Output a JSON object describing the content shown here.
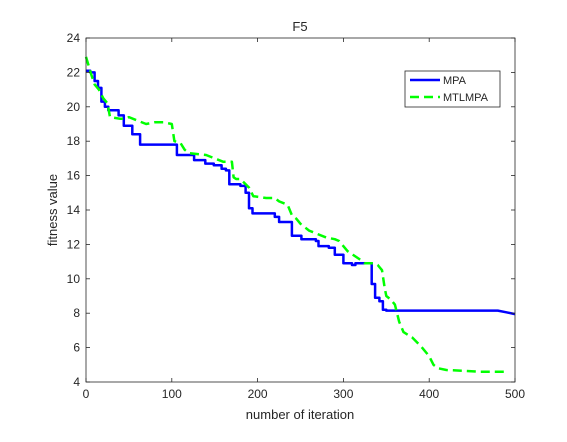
{
  "chart_data": {
    "type": "line",
    "title": "F5",
    "xlabel": "number of iteration",
    "ylabel": "fitness value",
    "xlim": [
      0,
      500
    ],
    "ylim": [
      4,
      24
    ],
    "xticks": [
      0,
      100,
      200,
      300,
      400,
      500
    ],
    "yticks": [
      4,
      6,
      8,
      10,
      12,
      14,
      16,
      18,
      20,
      22,
      24
    ],
    "grid": false,
    "legend_position": "top-right",
    "series": [
      {
        "name": "MPA",
        "color": "#0000ff",
        "style": "solid",
        "x": [
          0,
          5,
          5,
          10,
          10,
          14,
          14,
          18,
          18,
          22,
          22,
          26,
          26,
          38,
          38,
          44,
          44,
          54,
          54,
          63,
          63,
          106,
          106,
          126,
          126,
          139,
          139,
          149,
          149,
          158,
          158,
          163,
          163,
          167,
          167,
          180,
          180,
          186,
          186,
          190,
          190,
          194,
          194,
          220,
          220,
          225,
          225,
          240,
          240,
          251,
          251,
          268,
          268,
          271,
          271,
          283,
          283,
          290,
          290,
          300,
          300,
          310,
          310,
          314,
          314,
          333,
          333,
          337,
          337,
          342,
          342,
          346,
          346,
          350,
          350,
          360,
          480,
          490,
          500
        ],
        "y": [
          22.1,
          22.1,
          22.0,
          22.0,
          21.5,
          21.5,
          21.1,
          21.1,
          20.3,
          20.3,
          20.0,
          20.0,
          19.8,
          19.8,
          19.5,
          19.5,
          18.9,
          18.9,
          18.4,
          18.4,
          17.8,
          17.8,
          17.2,
          17.2,
          16.9,
          16.9,
          16.7,
          16.7,
          16.6,
          16.6,
          16.4,
          16.4,
          16.3,
          16.3,
          15.5,
          15.5,
          15.4,
          15.4,
          15.0,
          15.0,
          14.1,
          14.1,
          13.8,
          13.8,
          13.6,
          13.6,
          13.3,
          13.3,
          12.5,
          12.5,
          12.3,
          12.3,
          12.2,
          12.2,
          11.9,
          11.9,
          11.8,
          11.8,
          11.4,
          11.4,
          10.9,
          10.9,
          10.8,
          10.8,
          10.9,
          10.9,
          9.7,
          9.7,
          8.9,
          8.9,
          8.7,
          8.7,
          8.2,
          8.2,
          8.15,
          8.15,
          8.15,
          8.05,
          7.95
        ]
      },
      {
        "name": "MTLMPA",
        "color": "#00ff00",
        "style": "dashed",
        "x": [
          0,
          3,
          6,
          10,
          15,
          20,
          25,
          28,
          40,
          45,
          50,
          60,
          70,
          80,
          90,
          100,
          103,
          110,
          115,
          120,
          140,
          160,
          170,
          172,
          175,
          180,
          190,
          195,
          210,
          220,
          225,
          235,
          240,
          245,
          250,
          260,
          270,
          280,
          290,
          295,
          305,
          320,
          325,
          335,
          340,
          345,
          348,
          350,
          355,
          360,
          365,
          370,
          380,
          390,
          400,
          405,
          410,
          420,
          440,
          460,
          480,
          490
        ],
        "y": [
          22.9,
          22.4,
          21.9,
          21.3,
          21.0,
          20.5,
          20.2,
          19.4,
          19.3,
          19.3,
          19.4,
          19.2,
          19.0,
          19.1,
          19.1,
          19.0,
          18.0,
          17.9,
          17.5,
          17.3,
          17.2,
          16.8,
          16.8,
          15.9,
          15.8,
          15.8,
          15.3,
          14.8,
          14.7,
          14.7,
          14.5,
          14.3,
          13.7,
          13.5,
          13.2,
          12.8,
          12.6,
          12.4,
          12.3,
          12.2,
          11.6,
          11.1,
          10.9,
          10.9,
          10.8,
          10.5,
          9.5,
          9.0,
          8.8,
          8.5,
          7.5,
          6.9,
          6.6,
          6.1,
          5.5,
          5.0,
          4.8,
          4.7,
          4.65,
          4.6,
          4.6,
          4.6
        ]
      }
    ]
  }
}
